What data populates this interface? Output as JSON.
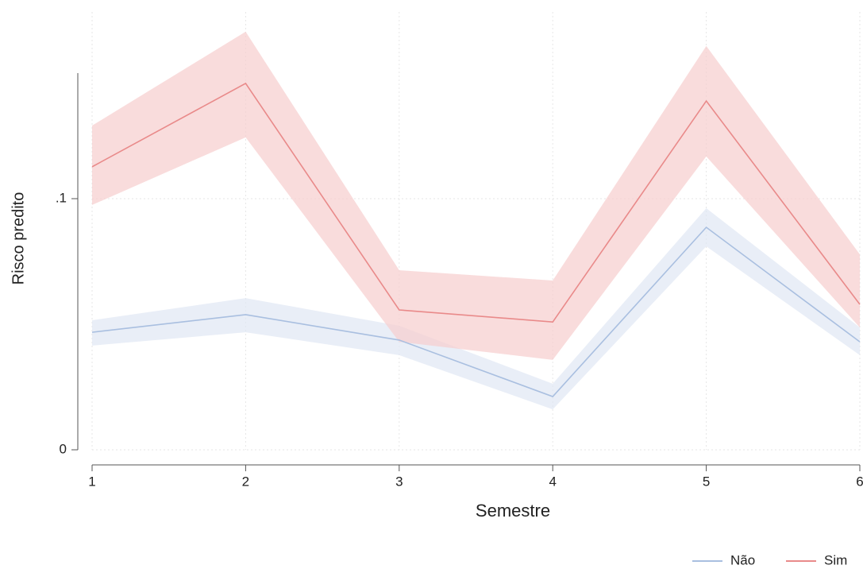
{
  "chart_data": {
    "type": "line",
    "x_label": "Semestre",
    "y_label": "Risco predito",
    "x": [
      1,
      2,
      3,
      4,
      5,
      6
    ],
    "xlim": [
      1,
      6
    ],
    "xticks": [
      1,
      2,
      3,
      4,
      5,
      6
    ],
    "ylim": [
      0,
      0.15
    ],
    "yticks": [
      0,
      {
        "value": 0.1,
        "label": ".1"
      }
    ],
    "grid": true,
    "legend": "bottom-right",
    "series": [
      {
        "name": "Não",
        "color": "#a9bfe0",
        "band_color": "#dfe7f4",
        "values": [
          0.0468,
          0.0538,
          0.0437,
          0.0212,
          0.0886,
          0.043
        ],
        "lower": [
          0.0415,
          0.0468,
          0.0377,
          0.0161,
          0.081,
          0.0377
        ],
        "upper": [
          0.0516,
          0.0604,
          0.0494,
          0.0263,
          0.0962,
          0.0487
        ]
      },
      {
        "name": "Sim",
        "color": "#e98a8a",
        "band_color": "#f7cdcd",
        "values": [
          0.1127,
          0.1459,
          0.0557,
          0.0509,
          0.1389,
          0.0579
        ],
        "lower": [
          0.0975,
          0.1244,
          0.043,
          0.0358,
          0.1168,
          0.0487
        ],
        "upper": [
          0.1291,
          0.1665,
          0.0715,
          0.0674,
          0.1608,
          0.0778
        ]
      }
    ]
  }
}
